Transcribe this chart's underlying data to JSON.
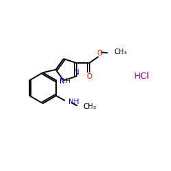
{
  "background_color": "#ffffff",
  "bond_color": "#000000",
  "N_color": "#0000cd",
  "O_color": "#ff0000",
  "HCl_color": "#800080",
  "fig_width": 2.5,
  "fig_height": 2.5,
  "dpi": 100,
  "lw": 1.4,
  "xlim": [
    0,
    10
  ],
  "ylim": [
    0,
    10
  ]
}
